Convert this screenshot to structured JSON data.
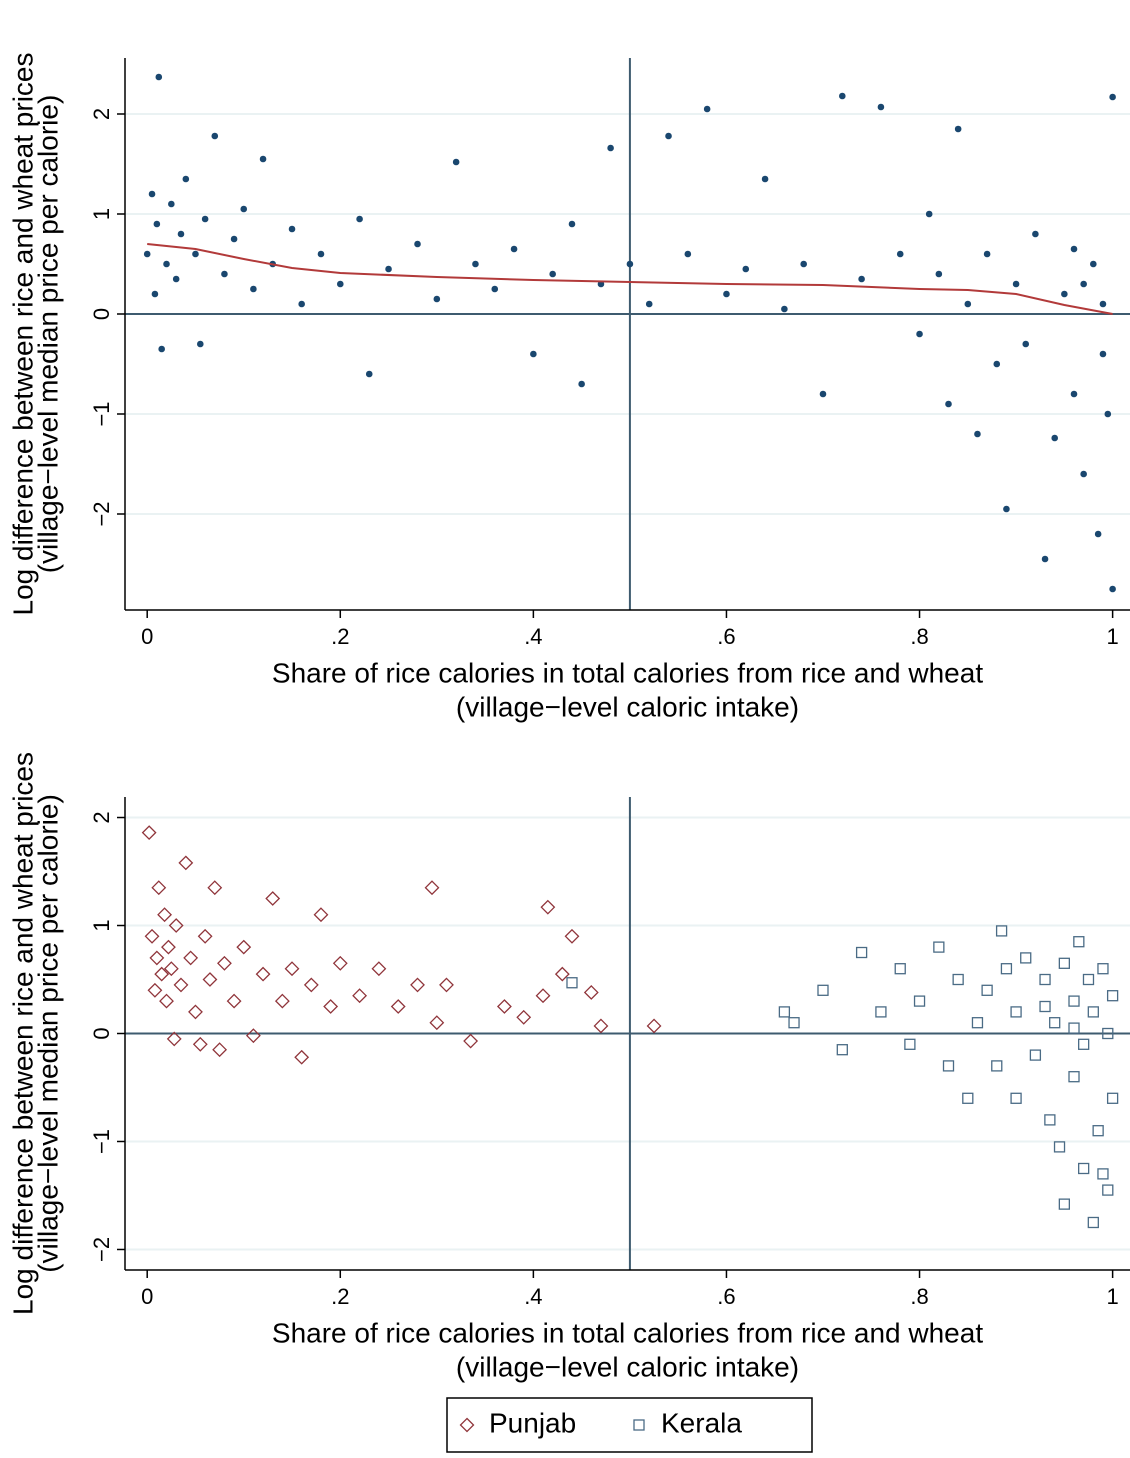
{
  "chart_data": [
    {
      "type": "scatter",
      "xlabel": [
        "Share of rice calories in total calories from rice and wheat",
        "(village−level caloric intake)"
      ],
      "ylabel": [
        "Log difference between rice and wheat prices",
        "(village−level median price per calorie)"
      ],
      "xlim": [
        -0.023,
        1.018
      ],
      "ylim": [
        -2.96,
        2.56
      ],
      "xticks": [
        0,
        {
          "value": 0.2,
          "label": ".2"
        },
        {
          "value": 0.4,
          "label": ".4"
        },
        {
          "value": 0.6,
          "label": ".6"
        },
        {
          "value": 0.8,
          "label": ".8"
        },
        1
      ],
      "yticks": [
        {
          "value": -2,
          "label": "−2"
        },
        {
          "value": -1,
          "label": "−1"
        },
        0,
        1,
        2
      ],
      "grid": true,
      "xline": 0.5,
      "yline": 0,
      "series": [
        {
          "kind": "points",
          "marker": "circle",
          "color": "#1a476f",
          "x": [
            0.0,
            0.005,
            0.008,
            0.01,
            0.012,
            0.015,
            0.02,
            0.025,
            0.03,
            0.035,
            0.04,
            0.05,
            0.055,
            0.06,
            0.07,
            0.08,
            0.09,
            0.1,
            0.11,
            0.12,
            0.13,
            0.15,
            0.16,
            0.18,
            0.2,
            0.22,
            0.23,
            0.25,
            0.28,
            0.3,
            0.32,
            0.34,
            0.36,
            0.38,
            0.4,
            0.42,
            0.44,
            0.45,
            0.47,
            0.48,
            0.5,
            0.52,
            0.54,
            0.56,
            0.58,
            0.6,
            0.62,
            0.64,
            0.66,
            0.68,
            0.7,
            0.72,
            0.74,
            0.76,
            0.78,
            0.8,
            0.81,
            0.82,
            0.83,
            0.84,
            0.85,
            0.86,
            0.87,
            0.88,
            0.89,
            0.9,
            0.91,
            0.92,
            0.93,
            0.94,
            0.95,
            0.96,
            0.97,
            0.98,
            0.985,
            0.99,
            0.995,
            1.0,
            1.0,
            0.97,
            0.96,
            0.99
          ],
          "values": [
            0.6,
            1.2,
            0.2,
            0.9,
            2.37,
            -0.35,
            0.5,
            1.1,
            0.35,
            0.8,
            1.35,
            0.6,
            -0.3,
            0.95,
            1.78,
            0.4,
            0.75,
            1.05,
            0.25,
            1.55,
            0.5,
            0.85,
            0.1,
            0.6,
            0.3,
            0.95,
            -0.6,
            0.45,
            0.7,
            0.15,
            1.52,
            0.5,
            0.25,
            0.65,
            -0.4,
            0.4,
            0.9,
            -0.7,
            0.3,
            1.66,
            0.5,
            0.1,
            1.78,
            0.6,
            2.05,
            0.2,
            0.45,
            1.35,
            0.05,
            0.5,
            -0.8,
            2.18,
            0.35,
            2.07,
            0.6,
            -0.2,
            1.0,
            0.4,
            -0.9,
            1.85,
            0.1,
            -1.2,
            0.6,
            -0.5,
            -1.95,
            0.3,
            -0.3,
            0.8,
            -2.45,
            -1.24,
            0.2,
            -0.8,
            -1.6,
            0.5,
            -2.2,
            0.1,
            -1.0,
            2.17,
            -2.75,
            0.3,
            0.65,
            -0.4
          ]
        },
        {
          "kind": "line",
          "color": "#b23a3a",
          "x": [
            0,
            0.05,
            0.1,
            0.15,
            0.2,
            0.3,
            0.4,
            0.5,
            0.6,
            0.7,
            0.8,
            0.85,
            0.9,
            0.95,
            1
          ],
          "values": [
            0.7,
            0.65,
            0.55,
            0.46,
            0.41,
            0.37,
            0.34,
            0.32,
            0.3,
            0.29,
            0.25,
            0.24,
            0.2,
            0.09,
            0.0
          ]
        }
      ]
    },
    {
      "type": "scatter",
      "xlabel": [
        "Share of rice calories in total calories from rice and wheat",
        "(village−level caloric intake)"
      ],
      "ylabel": [
        "Log difference between rice and wheat prices",
        "(village−level median price per calorie)"
      ],
      "xlim": [
        -0.023,
        1.018
      ],
      "ylim": [
        -2.19,
        2.19
      ],
      "xticks": [
        0,
        {
          "value": 0.2,
          "label": ".2"
        },
        {
          "value": 0.4,
          "label": ".4"
        },
        {
          "value": 0.6,
          "label": ".6"
        },
        {
          "value": 0.8,
          "label": ".8"
        },
        1
      ],
      "yticks": [
        {
          "value": -2,
          "label": "−2"
        },
        {
          "value": -1,
          "label": "−1"
        },
        0,
        1,
        2
      ],
      "grid": true,
      "xline": 0.5,
      "yline": 0,
      "legend": "bottom",
      "series": [
        {
          "name": "Punjab",
          "kind": "points",
          "marker": "diamond",
          "color": "#90353b",
          "x": [
            0.002,
            0.005,
            0.008,
            0.01,
            0.012,
            0.015,
            0.018,
            0.02,
            0.022,
            0.025,
            0.028,
            0.03,
            0.035,
            0.04,
            0.045,
            0.05,
            0.055,
            0.06,
            0.065,
            0.07,
            0.075,
            0.08,
            0.09,
            0.1,
            0.11,
            0.12,
            0.13,
            0.14,
            0.15,
            0.16,
            0.17,
            0.18,
            0.19,
            0.2,
            0.22,
            0.24,
            0.26,
            0.28,
            0.295,
            0.3,
            0.31,
            0.335,
            0.37,
            0.39,
            0.41,
            0.415,
            0.43,
            0.44,
            0.46,
            0.47,
            0.525
          ],
          "values": [
            1.86,
            0.9,
            0.4,
            0.7,
            1.35,
            0.55,
            1.1,
            0.3,
            0.8,
            0.6,
            -0.05,
            1.0,
            0.45,
            1.58,
            0.7,
            0.2,
            -0.1,
            0.9,
            0.5,
            1.35,
            -0.15,
            0.65,
            0.3,
            0.8,
            -0.02,
            0.55,
            1.25,
            0.3,
            0.6,
            -0.22,
            0.45,
            1.1,
            0.25,
            0.65,
            0.35,
            0.6,
            0.25,
            0.45,
            1.35,
            0.1,
            0.45,
            -0.07,
            0.25,
            0.15,
            0.35,
            1.17,
            0.55,
            0.9,
            0.38,
            0.07,
            0.07
          ]
        },
        {
          "name": "Kerala",
          "kind": "points",
          "marker": "square",
          "color": "#4a6b85",
          "x": [
            0.44,
            0.66,
            0.67,
            0.7,
            0.72,
            0.74,
            0.76,
            0.78,
            0.79,
            0.8,
            0.82,
            0.83,
            0.84,
            0.85,
            0.86,
            0.87,
            0.88,
            0.885,
            0.89,
            0.9,
            0.9,
            0.91,
            0.92,
            0.93,
            0.935,
            0.94,
            0.945,
            0.95,
            0.95,
            0.96,
            0.96,
            0.965,
            0.97,
            0.97,
            0.975,
            0.98,
            0.98,
            0.985,
            0.99,
            0.99,
            0.995,
            0.995,
            1.0,
            1.0,
            0.93,
            0.96
          ],
          "values": [
            0.47,
            0.2,
            0.1,
            0.4,
            -0.15,
            0.75,
            0.2,
            0.6,
            -0.1,
            0.3,
            0.8,
            -0.3,
            0.5,
            -0.6,
            0.1,
            0.4,
            -0.3,
            0.95,
            0.6,
            0.2,
            -0.6,
            0.7,
            -0.2,
            0.5,
            -0.8,
            0.1,
            -1.05,
            0.65,
            -1.58,
            -0.4,
            0.3,
            0.85,
            -0.1,
            -1.25,
            0.5,
            -1.75,
            0.2,
            -0.9,
            0.6,
            -1.3,
            0.0,
            -1.45,
            0.35,
            -0.6,
            0.25,
            0.05
          ]
        }
      ]
    }
  ]
}
